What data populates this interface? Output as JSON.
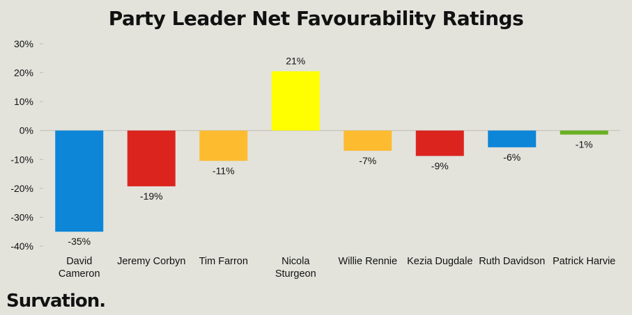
{
  "chart_data": {
    "type": "bar",
    "title": "Party Leader Net Favourability Ratings",
    "categories": [
      "David Cameron",
      "Jeremy Corbyn",
      "Tim Farron",
      "Nicola Sturgeon",
      "Willie Rennie",
      "Kezia Dugdale",
      "Ruth Davidson",
      "Patrick Harvie"
    ],
    "category_lines": [
      [
        "David",
        "Cameron"
      ],
      [
        "Jeremy Corbyn"
      ],
      [
        "Tim Farron"
      ],
      [
        "Nicola",
        "Sturgeon"
      ],
      [
        "Willie Rennie"
      ],
      [
        "Kezia Dugdale"
      ],
      [
        "Ruth Davidson"
      ],
      [
        "Patrick Harvie"
      ]
    ],
    "values": [
      -35,
      -19,
      -11,
      21,
      -7,
      -9,
      -6,
      -1
    ],
    "plotted_values": [
      -35,
      -19.3,
      -10.5,
      20.5,
      -7,
      -8.8,
      -5.8,
      -1.4
    ],
    "data_labels": [
      "-35%",
      "-19%",
      "-11%",
      "21%",
      "-7%",
      "-9%",
      "-6%",
      "-1%"
    ],
    "colors": [
      "#0d86d8",
      "#dc241f",
      "#fdbb30",
      "#ffff00",
      "#fdbb30",
      "#dc241f",
      "#0d86d8",
      "#6ab023"
    ],
    "yticks": [
      30,
      20,
      10,
      0,
      -10,
      -20,
      -30,
      -40
    ],
    "ytick_labels": [
      "30%",
      "20%",
      "10%",
      "0%",
      "-10%",
      "-20%",
      "-30%",
      "-40%"
    ],
    "ylim": [
      -40,
      30
    ],
    "xlabel": "",
    "ylabel": "",
    "grid": false,
    "legend": "none"
  },
  "brand": {
    "logo_text": "Survation."
  }
}
